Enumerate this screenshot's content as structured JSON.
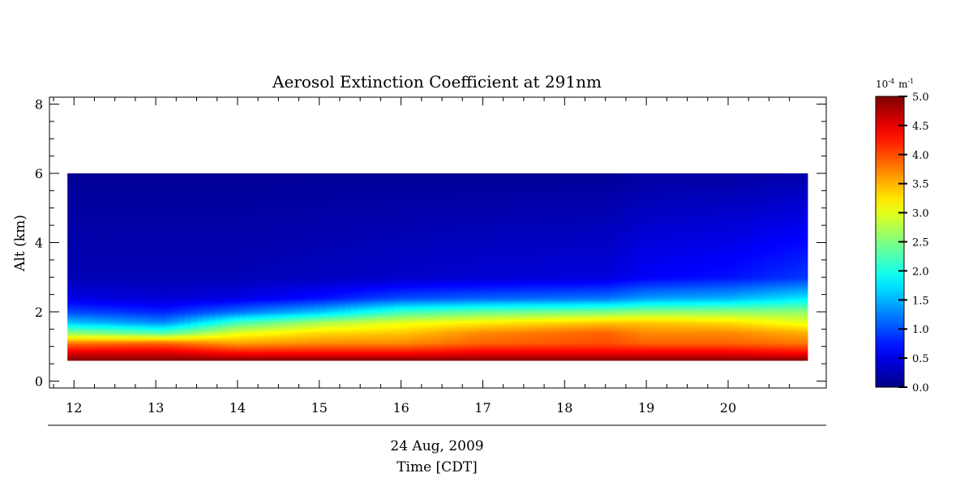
{
  "chart_data": {
    "type": "heatmap",
    "title": "Aerosol Extinction Coefficient at 291nm",
    "ylabel": "Alt (km)",
    "xlabel_date": "24 Aug, 2009",
    "xlabel": "Time [CDT]",
    "xlim": [
      11.7,
      21.2
    ],
    "ylim": [
      -0.2,
      8.2
    ],
    "x_ticks": [
      "12",
      "13",
      "14",
      "15",
      "16",
      "17",
      "18",
      "19",
      "20"
    ],
    "y_ticks": [
      "0",
      "2",
      "4",
      "6",
      "8"
    ],
    "data_extent": {
      "x": [
        11.92,
        20.97
      ],
      "y": [
        0.6,
        6.0
      ]
    },
    "colorbar": {
      "unit_prefix": "10",
      "unit_exponent": "-4",
      "unit_suffix": "m",
      "unit_suffix_exp": "-1",
      "range": [
        0.0,
        5.0
      ],
      "ticks": [
        "0.0",
        "0.5",
        "1.0",
        "1.5",
        "2.0",
        "2.5",
        "3.0",
        "3.5",
        "4.0",
        "4.5",
        "5.0"
      ],
      "colormap": "jet"
    },
    "profiles": [
      {
        "time": 11.9,
        "altitude_km": [
          0.6,
          0.8,
          1.1,
          1.4,
          1.7,
          2.0,
          2.4,
          3.0,
          6.0
        ],
        "extinction": [
          5.0,
          4.6,
          3.8,
          2.6,
          1.6,
          1.0,
          0.5,
          0.25,
          0.1
        ]
      },
      {
        "time": 13.1,
        "altitude_km": [
          0.6,
          0.8,
          1.1,
          1.4,
          1.7,
          2.0,
          2.4,
          3.0,
          6.0
        ],
        "extinction": [
          5.0,
          4.6,
          3.9,
          2.3,
          1.3,
          0.8,
          0.4,
          0.25,
          0.1
        ]
      },
      {
        "time": 14.0,
        "altitude_km": [
          0.6,
          0.8,
          1.1,
          1.4,
          1.7,
          2.0,
          2.4,
          3.0,
          6.0
        ],
        "extinction": [
          5.0,
          4.4,
          3.6,
          3.0,
          2.2,
          1.2,
          0.5,
          0.25,
          0.1
        ]
      },
      {
        "time": 15.0,
        "altitude_km": [
          0.6,
          0.8,
          1.1,
          1.4,
          1.7,
          2.0,
          2.4,
          3.0,
          6.0
        ],
        "extinction": [
          5.0,
          4.4,
          3.7,
          3.3,
          2.7,
          1.6,
          0.7,
          0.3,
          0.1
        ]
      },
      {
        "time": 16.0,
        "altitude_km": [
          0.6,
          0.8,
          1.1,
          1.4,
          1.7,
          2.0,
          2.4,
          3.0,
          6.0
        ],
        "extinction": [
          5.0,
          4.4,
          3.7,
          3.4,
          3.0,
          2.2,
          1.0,
          0.35,
          0.1
        ]
      },
      {
        "time": 17.0,
        "altitude_km": [
          0.6,
          0.8,
          1.1,
          1.4,
          1.7,
          2.0,
          2.4,
          3.0,
          6.0
        ],
        "extinction": [
          5.0,
          4.5,
          3.9,
          3.7,
          3.2,
          2.4,
          1.1,
          0.4,
          0.1
        ]
      },
      {
        "time": 18.5,
        "altitude_km": [
          0.6,
          0.8,
          1.1,
          1.4,
          1.7,
          2.0,
          2.4,
          3.0,
          6.0
        ],
        "extinction": [
          5.0,
          4.5,
          4.0,
          3.9,
          3.4,
          2.5,
          1.2,
          0.45,
          0.1
        ]
      },
      {
        "time": 19.0,
        "altitude_km": [
          0.6,
          0.8,
          1.1,
          1.4,
          1.7,
          2.0,
          2.4,
          3.0,
          6.0
        ],
        "extinction": [
          5.0,
          4.5,
          3.9,
          3.7,
          3.4,
          2.6,
          1.4,
          0.6,
          0.15
        ]
      },
      {
        "time": 20.0,
        "altitude_km": [
          0.6,
          0.8,
          1.1,
          1.4,
          1.7,
          2.0,
          2.4,
          3.0,
          6.0
        ],
        "extinction": [
          5.0,
          4.5,
          3.9,
          3.7,
          3.3,
          2.6,
          1.5,
          0.7,
          0.15
        ]
      },
      {
        "time": 21.0,
        "altitude_km": [
          0.6,
          0.8,
          1.1,
          1.4,
          1.7,
          2.0,
          2.4,
          3.0,
          6.0
        ],
        "extinction": [
          5.0,
          4.4,
          3.8,
          3.5,
          3.0,
          2.6,
          1.8,
          0.9,
          0.2
        ]
      }
    ]
  }
}
